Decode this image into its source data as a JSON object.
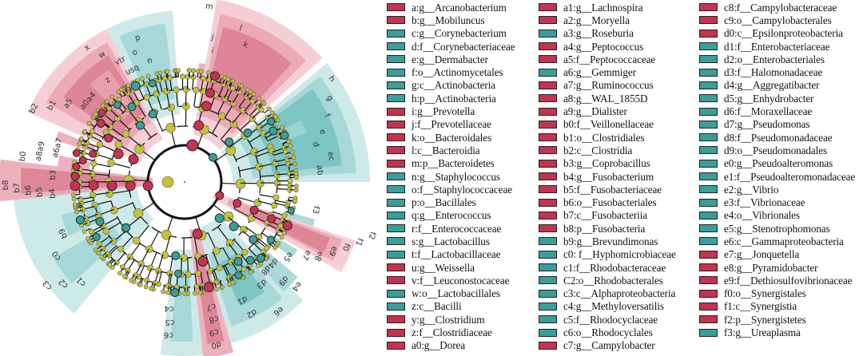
{
  "colors": {
    "group_red": "#c4334f",
    "group_teal": "#3a9e9a",
    "node_default": "#c2c23c"
  },
  "legend": {
    "columns": [
      [
        {
          "label": "a:g__Arcanobacterium",
          "group": "red"
        },
        {
          "label": "b:g__Mobiluncus",
          "group": "red"
        },
        {
          "label": "c:g__Corynebacterium",
          "group": "teal"
        },
        {
          "label": "d:f__Corynebacteriaceae",
          "group": "teal"
        },
        {
          "label": "e:g__Dermabacter",
          "group": "teal"
        },
        {
          "label": "f:o__Actinomycetales",
          "group": "teal"
        },
        {
          "label": "g:c__Actinobacteria",
          "group": "teal"
        },
        {
          "label": "h:p__Actinobacteria",
          "group": "teal"
        },
        {
          "label": "i:g__Prevotella",
          "group": "red"
        },
        {
          "label": "j:f__Prevotellaceae",
          "group": "red"
        },
        {
          "label": "k:o__Bacteroidales",
          "group": "red"
        },
        {
          "label": "l:c__Bacteroidia",
          "group": "red"
        },
        {
          "label": "m:p__Bacteroidetes",
          "group": "red"
        },
        {
          "label": "n:g__Staphylococcus",
          "group": "teal"
        },
        {
          "label": "o:f__Staphylococcaceae",
          "group": "teal"
        },
        {
          "label": "p:o__Bacillales",
          "group": "teal"
        },
        {
          "label": "q:g__Enterococcus",
          "group": "teal"
        },
        {
          "label": "r:f__Enterococcaceae",
          "group": "teal"
        },
        {
          "label": "s:g__Lactobacillus",
          "group": "teal"
        },
        {
          "label": "t:f__Lactobacillaceae",
          "group": "teal"
        },
        {
          "label": "u:g__Weissella",
          "group": "red"
        },
        {
          "label": "v:f__Leuconostocaceae",
          "group": "red"
        },
        {
          "label": "w:o__Lactobacillales",
          "group": "teal"
        },
        {
          "label": "z:c__Bacilli",
          "group": "teal"
        },
        {
          "label": "y:g__Clostridium",
          "group": "red"
        },
        {
          "label": "z:f__Clostridiaceae",
          "group": "red"
        },
        {
          "label": "a0:g__Dorea",
          "group": "red"
        }
      ],
      [
        {
          "label": "a1:g__Lachnospira",
          "group": "red"
        },
        {
          "label": "a2:g__Moryella",
          "group": "red"
        },
        {
          "label": "a3:g__Roseburia",
          "group": "teal"
        },
        {
          "label": "a4:g__Peptococcus",
          "group": "red"
        },
        {
          "label": "a5:f__Peptococcaceae",
          "group": "red"
        },
        {
          "label": "a6:g__Gemmiger",
          "group": "teal"
        },
        {
          "label": "a7:g__Ruminococcus",
          "group": "red"
        },
        {
          "label": "a8:g__WAL_1855D",
          "group": "red"
        },
        {
          "label": "a9:g__Dialister",
          "group": "red"
        },
        {
          "label": "b0:f__Veillonellaceae",
          "group": "red"
        },
        {
          "label": "b1:o__Clostridiales",
          "group": "red"
        },
        {
          "label": "b2:c__Clostridia",
          "group": "red"
        },
        {
          "label": "b3:g__Coprobacillus",
          "group": "red"
        },
        {
          "label": "b4:g__Fusobacterium",
          "group": "red"
        },
        {
          "label": "b5:f__Fusobacteriaceae",
          "group": "red"
        },
        {
          "label": "b6:o__Fusobacteriales",
          "group": "red"
        },
        {
          "label": "b7:c__Fusobacteriia",
          "group": "red"
        },
        {
          "label": "b8:p__Fusobacteria",
          "group": "red"
        },
        {
          "label": "b9:g__Brevundimonas",
          "group": "teal"
        },
        {
          "label": "c0: f__Hyphomicrobiaceae",
          "group": "teal"
        },
        {
          "label": "c1:f__Rhodobacteraceae",
          "group": "teal"
        },
        {
          "label": "C2:o__Rhodobacterales",
          "group": "teal"
        },
        {
          "label": "c3:c__Alphaproteobacteria",
          "group": "teal"
        },
        {
          "label": "c4:g__Methyloversatilis",
          "group": "teal"
        },
        {
          "label": "c5:f__Rhodocyclaceae",
          "group": "teal"
        },
        {
          "label": "c6:o__Rhodocyclales",
          "group": "teal"
        },
        {
          "label": "c7:g__Campylobacter",
          "group": "red"
        }
      ],
      [
        {
          "label": "c8:f__Campylobacteraceae",
          "group": "red"
        },
        {
          "label": "c9:o__Campylobacterales",
          "group": "red"
        },
        {
          "label": "d0:c__Epsilonproteobacteria",
          "group": "red"
        },
        {
          "label": "d1:f__Enterobacteriaceae",
          "group": "teal"
        },
        {
          "label": "d2:o__Enterobacteriales",
          "group": "teal"
        },
        {
          "label": "d3:f__Halomonadaceae",
          "group": "teal"
        },
        {
          "label": "d4:g__Aggregatibacter",
          "group": "teal"
        },
        {
          "label": "d5:g__Enhydrobacter",
          "group": "teal"
        },
        {
          "label": "d6:f__Moraxellaceae",
          "group": "teal"
        },
        {
          "label": "d7:g__Pseudomonas",
          "group": "teal"
        },
        {
          "label": "d8:f__Pseudomonadaceae",
          "group": "teal"
        },
        {
          "label": "d9:o__Pseudomonadales",
          "group": "teal"
        },
        {
          "label": "e0:g__Pseudoalteromonas",
          "group": "teal"
        },
        {
          "label": "e1:f__Pseudoalteromonadaceae",
          "group": "teal"
        },
        {
          "label": "e2:g__Vibrio",
          "group": "teal"
        },
        {
          "label": "e3:f__Vibrionaceae",
          "group": "teal"
        },
        {
          "label": "e4:o__Vibrionales",
          "group": "teal"
        },
        {
          "label": "e5:g__Stenotrophomonas",
          "group": "teal"
        },
        {
          "label": "e6:c__Gammaproteobacteria",
          "group": "teal"
        },
        {
          "label": "e7:g__Jonquetella",
          "group": "red"
        },
        {
          "label": "e8:g__Pyramidobacter",
          "group": "red"
        },
        {
          "label": "e9:f__Dethiosulfovibrionaceae",
          "group": "red"
        },
        {
          "label": "f0:o__Synergistales",
          "group": "red"
        },
        {
          "label": "f1:c__Synergistia",
          "group": "red"
        },
        {
          "label": "f2:p__Synergistetes",
          "group": "red"
        },
        {
          "label": "f3:g__Ureaplasma",
          "group": "teal"
        }
      ]
    ]
  },
  "cladogram": {
    "clade_labels": [
      "m",
      "l",
      "k",
      "j",
      "i",
      "h",
      "g",
      "f",
      "e",
      "d",
      "ec",
      "ab",
      "p",
      "o",
      "n",
      "x",
      "w",
      "vtr",
      "usq",
      "z",
      "y",
      "b2",
      "b1",
      "a5",
      "a0a4",
      "a6a7",
      "a8a9",
      "b0",
      "b3",
      "b4",
      "b5",
      "b6",
      "b7",
      "b8",
      "b9",
      "c0",
      "c1",
      "c2",
      "c3",
      "c4",
      "c5",
      "c6",
      "c7",
      "c8",
      "c9",
      "d0",
      "d1",
      "d2",
      "d3",
      "d9",
      "e4",
      "e6",
      "d4d8",
      "e5",
      "e7",
      "e8",
      "e9",
      "f0",
      "f1",
      "f2",
      "f3"
    ]
  }
}
